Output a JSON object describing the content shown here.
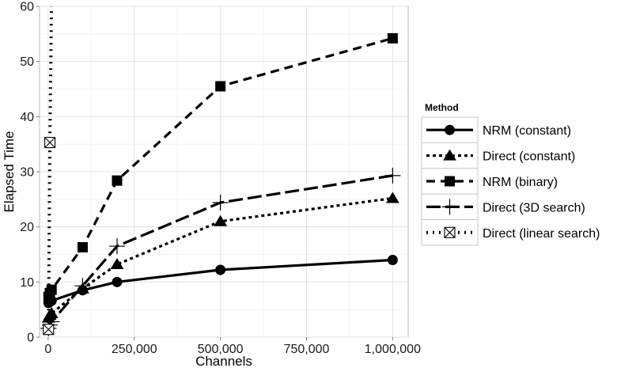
{
  "chart_data": {
    "type": "line",
    "xlabel": "Channels",
    "ylabel": "Elapsed Time",
    "xlim": [
      -25000,
      1045000
    ],
    "ylim": [
      0,
      60
    ],
    "x_ticks": [
      0,
      250000,
      500000,
      750000,
      1000000
    ],
    "x_tick_labels": [
      "0",
      "250,000",
      "500,000",
      "750,000",
      "1,000,000"
    ],
    "y_ticks": [
      0,
      10,
      20,
      30,
      40,
      50,
      60
    ],
    "y_tick_labels": [
      "0",
      "10",
      "20",
      "30",
      "40",
      "50",
      "60"
    ],
    "grid": true,
    "legend_title": "Method",
    "legend_position": "right",
    "series": [
      {
        "name": "NRM (constant)",
        "line": "solid",
        "marker": "circle",
        "points": [
          [
            1000,
            6.2
          ],
          [
            5000,
            6.4
          ],
          [
            10000,
            6.6
          ],
          [
            100000,
            8.5
          ],
          [
            200000,
            10.0
          ],
          [
            500000,
            12.2
          ],
          [
            1000000,
            14.0
          ]
        ]
      },
      {
        "name": "Direct (constant)",
        "line": "dotted",
        "marker": "triangle",
        "points": [
          [
            1000,
            3.5
          ],
          [
            5000,
            4.0
          ],
          [
            10000,
            4.3
          ],
          [
            100000,
            8.8
          ],
          [
            200000,
            13.2
          ],
          [
            500000,
            21.0
          ],
          [
            1000000,
            25.2
          ]
        ]
      },
      {
        "name": "NRM (binary)",
        "line": "dashed",
        "marker": "square",
        "points": [
          [
            1000,
            7.3
          ],
          [
            5000,
            8.0
          ],
          [
            10000,
            8.6
          ],
          [
            100000,
            16.3
          ],
          [
            200000,
            28.4
          ],
          [
            500000,
            45.5
          ],
          [
            1000000,
            54.2
          ]
        ]
      },
      {
        "name": "Direct (3D search)",
        "line": "longdash",
        "marker": "plus",
        "points": [
          [
            1000,
            1.6
          ],
          [
            5000,
            2.2
          ],
          [
            10000,
            2.8
          ],
          [
            100000,
            9.3
          ],
          [
            200000,
            16.5
          ],
          [
            500000,
            24.4
          ],
          [
            1000000,
            29.3
          ]
        ]
      },
      {
        "name": "Direct (linear search)",
        "line": "dotted-heavy",
        "marker": "boxed-x",
        "points": [
          [
            1000,
            1.4
          ],
          [
            5000,
            35.3
          ],
          [
            10000,
            62
          ]
        ]
      }
    ]
  }
}
